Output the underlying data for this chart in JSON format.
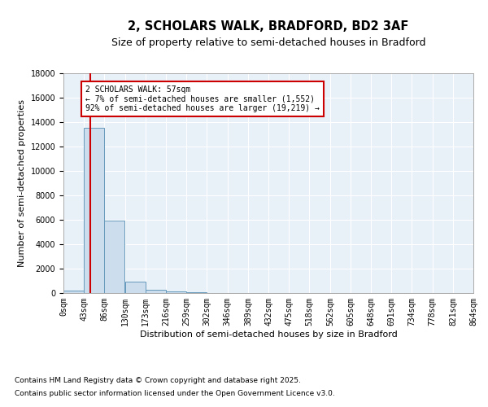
{
  "title": "2, SCHOLARS WALK, BRADFORD, BD2 3AF",
  "subtitle": "Size of property relative to semi-detached houses in Bradford",
  "xlabel": "Distribution of semi-detached houses by size in Bradford",
  "ylabel": "Number of semi-detached properties",
  "property_size": 57,
  "annotation_line1": "2 SCHOLARS WALK: 57sqm",
  "annotation_line2": "← 7% of semi-detached houses are smaller (1,552)",
  "annotation_line3": "92% of semi-detached houses are larger (19,219) →",
  "footer_line1": "Contains HM Land Registry data © Crown copyright and database right 2025.",
  "footer_line2": "Contains public sector information licensed under the Open Government Licence v3.0.",
  "bar_color": "#ccdded",
  "bar_edge_color": "#6699bb",
  "red_line_color": "#cc0000",
  "annotation_box_edge_color": "#cc0000",
  "background_color": "#e8f0f8",
  "bin_edges": [
    0,
    43,
    86,
    130,
    173,
    216,
    259,
    302,
    346,
    389,
    432,
    475,
    518,
    562,
    605,
    648,
    691,
    734,
    778,
    821,
    864
  ],
  "bin_counts": [
    200,
    13500,
    5950,
    950,
    300,
    130,
    60,
    30,
    15,
    8,
    5,
    3,
    2,
    2,
    1,
    1,
    1,
    0,
    0,
    0
  ],
  "ylim": [
    0,
    18000
  ],
  "yticks": [
    0,
    2000,
    4000,
    6000,
    8000,
    10000,
    12000,
    14000,
    16000,
    18000
  ],
  "title_fontsize": 10.5,
  "subtitle_fontsize": 9,
  "axis_label_fontsize": 8,
  "tick_fontsize": 7,
  "footer_fontsize": 6.5,
  "annotation_fontsize": 7
}
